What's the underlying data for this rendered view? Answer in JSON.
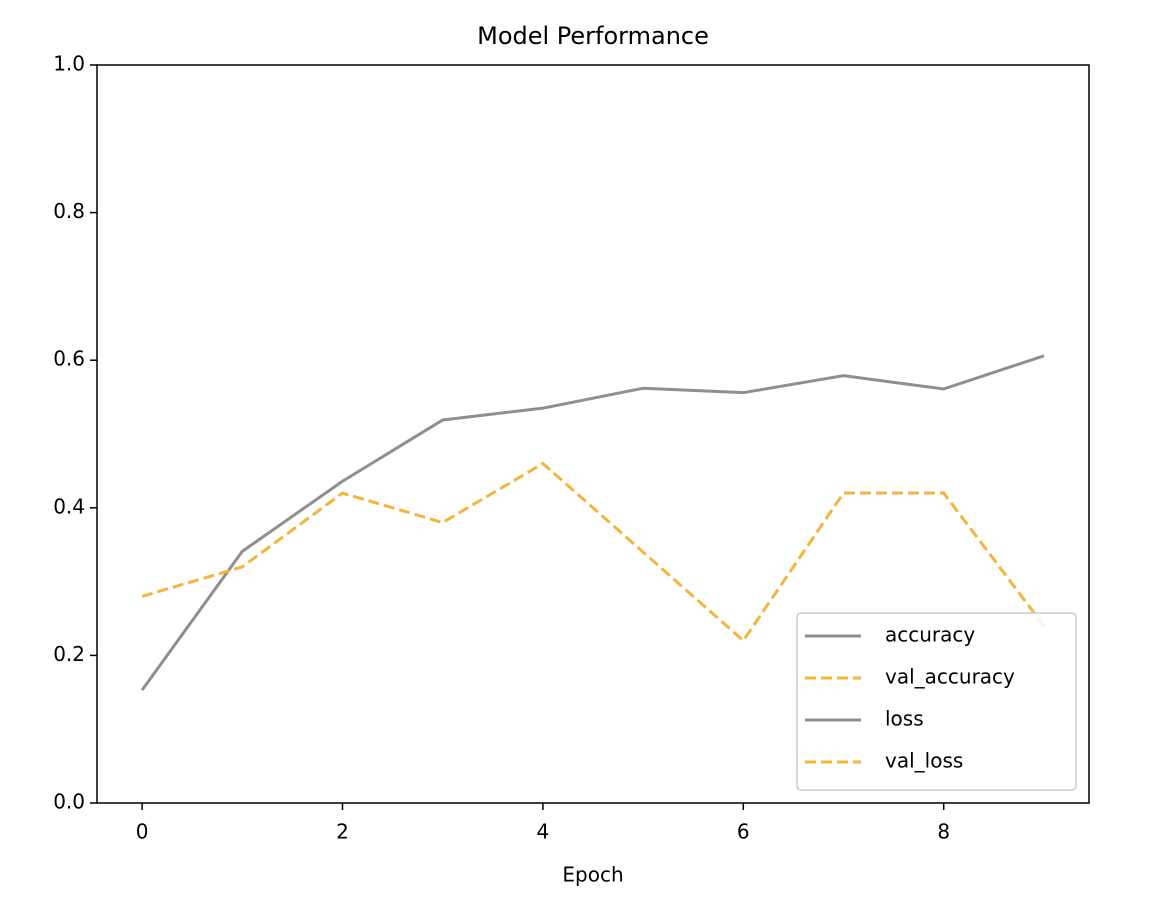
{
  "chart_data": {
    "type": "line",
    "title": "Model Performance",
    "x_label": "Epoch",
    "x": [
      0,
      1,
      2,
      3,
      4,
      5,
      6,
      7,
      8,
      9
    ],
    "series": [
      {
        "name": "accuracy",
        "color": "#8f8f8f",
        "dash": "solid",
        "values": [
          0.153,
          0.341,
          0.436,
          0.519,
          0.535,
          0.562,
          0.556,
          0.579,
          0.561,
          0.606
        ]
      },
      {
        "name": "val_accuracy",
        "color": "#f5b43c",
        "dash": "dashed",
        "values": [
          0.28,
          0.32,
          0.42,
          0.38,
          0.46,
          0.34,
          0.22,
          0.42,
          0.42,
          0.24
        ]
      },
      {
        "name": "loss",
        "color": "#8f8f8f",
        "dash": "solid",
        "values": [
          null,
          null,
          null,
          null,
          null,
          null,
          null,
          null,
          null,
          null
        ]
      },
      {
        "name": "val_loss",
        "color": "#f5b43c",
        "dash": "dashed",
        "values": [
          null,
          null,
          null,
          null,
          null,
          null,
          null,
          null,
          null,
          null
        ]
      }
    ],
    "xlim": [
      -0.45,
      9.45
    ],
    "xticks": [
      0,
      2,
      4,
      6,
      8
    ],
    "ylim": [
      0,
      1
    ],
    "yticks": [
      {
        "value": 0,
        "label": "0.0"
      },
      0.2,
      0.4,
      0.6,
      0.8,
      {
        "value": 1,
        "label": "1.0"
      }
    ],
    "grid": false,
    "legend": "lower right"
  }
}
